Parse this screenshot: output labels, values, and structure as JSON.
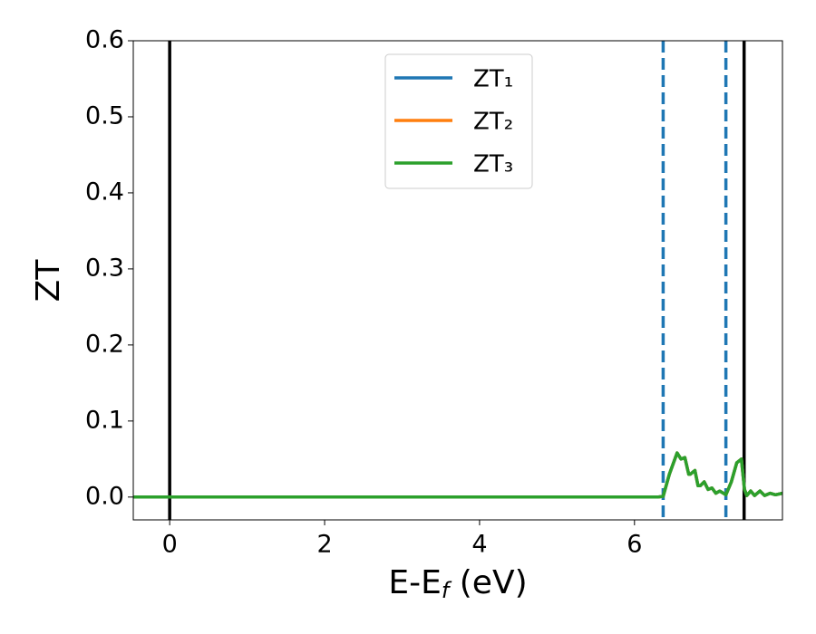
{
  "chart_data": {
    "type": "line",
    "xlabel": [
      "E-E",
      "f",
      " (eV)"
    ],
    "ylabel": "ZT",
    "x": [
      -0.47,
      6.3,
      6.37,
      6.45,
      6.55,
      6.6,
      6.65,
      6.7,
      6.72,
      6.78,
      6.82,
      6.85,
      6.9,
      6.95,
      7.0,
      7.05,
      7.1,
      7.18,
      7.25,
      7.32,
      7.38,
      7.42,
      7.45,
      7.5,
      7.55,
      7.62,
      7.68,
      7.75,
      7.82,
      7.91
    ],
    "series": [
      {
        "name": "ZT₁",
        "color": "#1f77b4",
        "values": [
          0,
          0,
          0.001,
          0.03,
          0.058,
          0.05,
          0.052,
          0.03,
          0.03,
          0.035,
          0.015,
          0.015,
          0.02,
          0.01,
          0.012,
          0.005,
          0.008,
          0.003,
          0.02,
          0.045,
          0.05,
          0.01,
          0.002,
          0.008,
          0.002,
          0.008,
          0.002,
          0.005,
          0.003,
          0.005
        ]
      },
      {
        "name": "ZT₂",
        "color": "#ff7f0e",
        "values": [
          0,
          0,
          0.001,
          0.03,
          0.058,
          0.05,
          0.052,
          0.03,
          0.03,
          0.035,
          0.015,
          0.015,
          0.02,
          0.01,
          0.012,
          0.005,
          0.008,
          0.003,
          0.02,
          0.045,
          0.05,
          0.01,
          0.002,
          0.008,
          0.002,
          0.008,
          0.002,
          0.005,
          0.003,
          0.005
        ]
      },
      {
        "name": "ZT₃",
        "color": "#2ca02c",
        "values": [
          0,
          0,
          0.001,
          0.03,
          0.058,
          0.05,
          0.052,
          0.03,
          0.03,
          0.035,
          0.015,
          0.015,
          0.02,
          0.01,
          0.012,
          0.005,
          0.008,
          0.003,
          0.02,
          0.045,
          0.05,
          0.01,
          0.002,
          0.008,
          0.002,
          0.008,
          0.002,
          0.005,
          0.003,
          0.005
        ]
      }
    ],
    "vlines": [
      {
        "x": 0,
        "color": "#000000",
        "dashed": false
      },
      {
        "x": 6.37,
        "color": "#1f77b4",
        "dashed": true
      },
      {
        "x": 7.18,
        "color": "#1f77b4",
        "dashed": true
      },
      {
        "x": 7.415,
        "color": "#000000",
        "dashed": false
      }
    ],
    "xlim": [
      -0.47,
      7.91
    ],
    "ylim": [
      -0.03,
      0.6
    ],
    "xticks": [
      0,
      2,
      4,
      6
    ],
    "yticks": [
      {
        "value": 0,
        "label": "0.0"
      },
      0.1,
      0.2,
      0.3,
      0.4,
      0.5,
      0.6
    ],
    "legend": "upper center"
  }
}
